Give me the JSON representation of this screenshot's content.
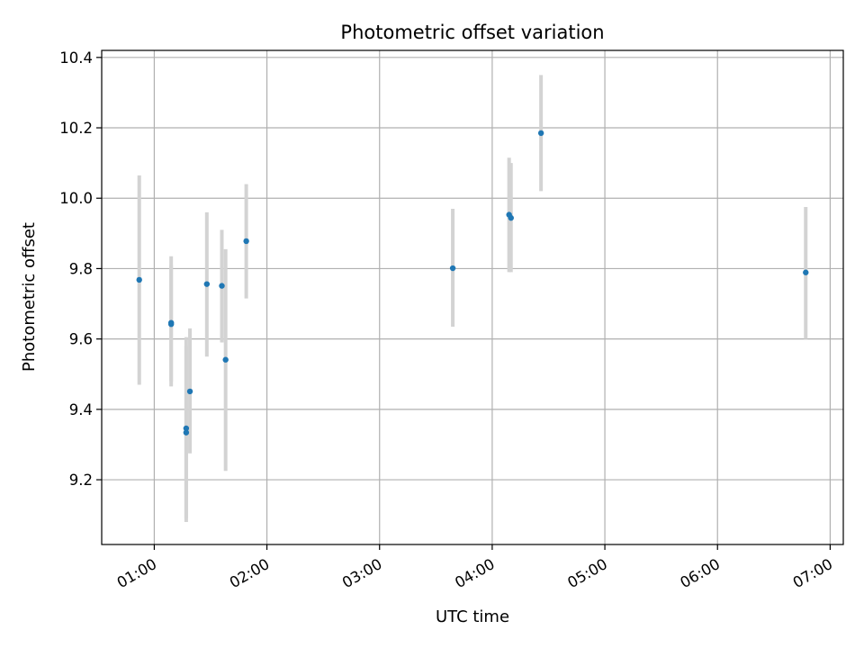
{
  "chart_data": {
    "type": "scatter",
    "title": "Photometric offset variation",
    "xlabel": "UTC time",
    "ylabel": "Photometric offset",
    "x_unit": "time",
    "x_ticks": [
      "01:00",
      "02:00",
      "03:00",
      "04:00",
      "05:00",
      "06:00",
      "07:00"
    ],
    "y_ticks": [
      "9.2",
      "9.4",
      "9.6",
      "9.8",
      "10.0",
      "10.2",
      "10.4"
    ],
    "xlim": [
      "00:32",
      "07:07"
    ],
    "ylim": [
      9.016,
      10.42
    ],
    "grid": true,
    "colors": {
      "point": "#1f77b4",
      "errorbar": "#d3d3d3",
      "grid": "#b0b0b0"
    },
    "points": [
      {
        "x": "00:52",
        "y": 9.768,
        "ylow": 9.47,
        "yhigh": 10.065
      },
      {
        "x": "01:09",
        "y": 9.646,
        "ylow": 9.465,
        "yhigh": 9.835
      },
      {
        "x": "01:09",
        "y": 9.642,
        "ylow": 9.48,
        "yhigh": 9.81
      },
      {
        "x": "01:17",
        "y": 9.346,
        "ylow": 9.08,
        "yhigh": 9.605
      },
      {
        "x": "01:17",
        "y": 9.334,
        "ylow": 9.09,
        "yhigh": 9.58
      },
      {
        "x": "01:19",
        "y": 9.451,
        "ylow": 9.275,
        "yhigh": 9.63
      },
      {
        "x": "01:28",
        "y": 9.756,
        "ylow": 9.55,
        "yhigh": 9.96
      },
      {
        "x": "01:36",
        "y": 9.751,
        "ylow": 9.59,
        "yhigh": 9.91
      },
      {
        "x": "01:38",
        "y": 9.541,
        "ylow": 9.225,
        "yhigh": 9.855
      },
      {
        "x": "01:49",
        "y": 9.878,
        "ylow": 9.715,
        "yhigh": 10.04
      },
      {
        "x": "03:39",
        "y": 9.801,
        "ylow": 9.635,
        "yhigh": 9.97
      },
      {
        "x": "04:09",
        "y": 9.953,
        "ylow": 9.79,
        "yhigh": 10.115
      },
      {
        "x": "04:10",
        "y": 9.944,
        "ylow": 9.79,
        "yhigh": 10.1
      },
      {
        "x": "04:26",
        "y": 10.185,
        "ylow": 10.02,
        "yhigh": 10.35
      },
      {
        "x": "06:47",
        "y": 9.789,
        "ylow": 9.6,
        "yhigh": 9.975
      }
    ]
  }
}
